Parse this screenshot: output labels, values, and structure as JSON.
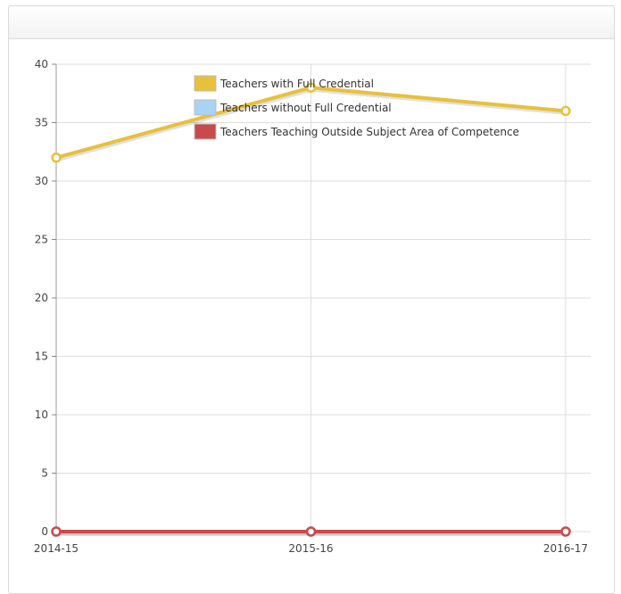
{
  "chart_data": {
    "type": "line",
    "title": "",
    "xlabel": "",
    "ylabel": "",
    "x": [
      "2014-15",
      "2015-16",
      "2016-17"
    ],
    "ylim": [
      0,
      40
    ],
    "yticks": [
      "0",
      "5",
      "10",
      "15",
      "20",
      "25",
      "30",
      "35",
      "40"
    ],
    "grid": true,
    "legend_position": "top-center",
    "series": [
      {
        "name": "Teachers with Full Credential",
        "values": [
          32,
          38,
          36
        ],
        "color": "#e8c03a"
      },
      {
        "name": "Teachers without Full Credential",
        "values": [
          0,
          0,
          0
        ],
        "color": "#a9d3f5"
      },
      {
        "name": "Teachers Teaching Outside Subject Area of Competence",
        "values": [
          0,
          0,
          0
        ],
        "color": "#c94a4a"
      }
    ]
  }
}
